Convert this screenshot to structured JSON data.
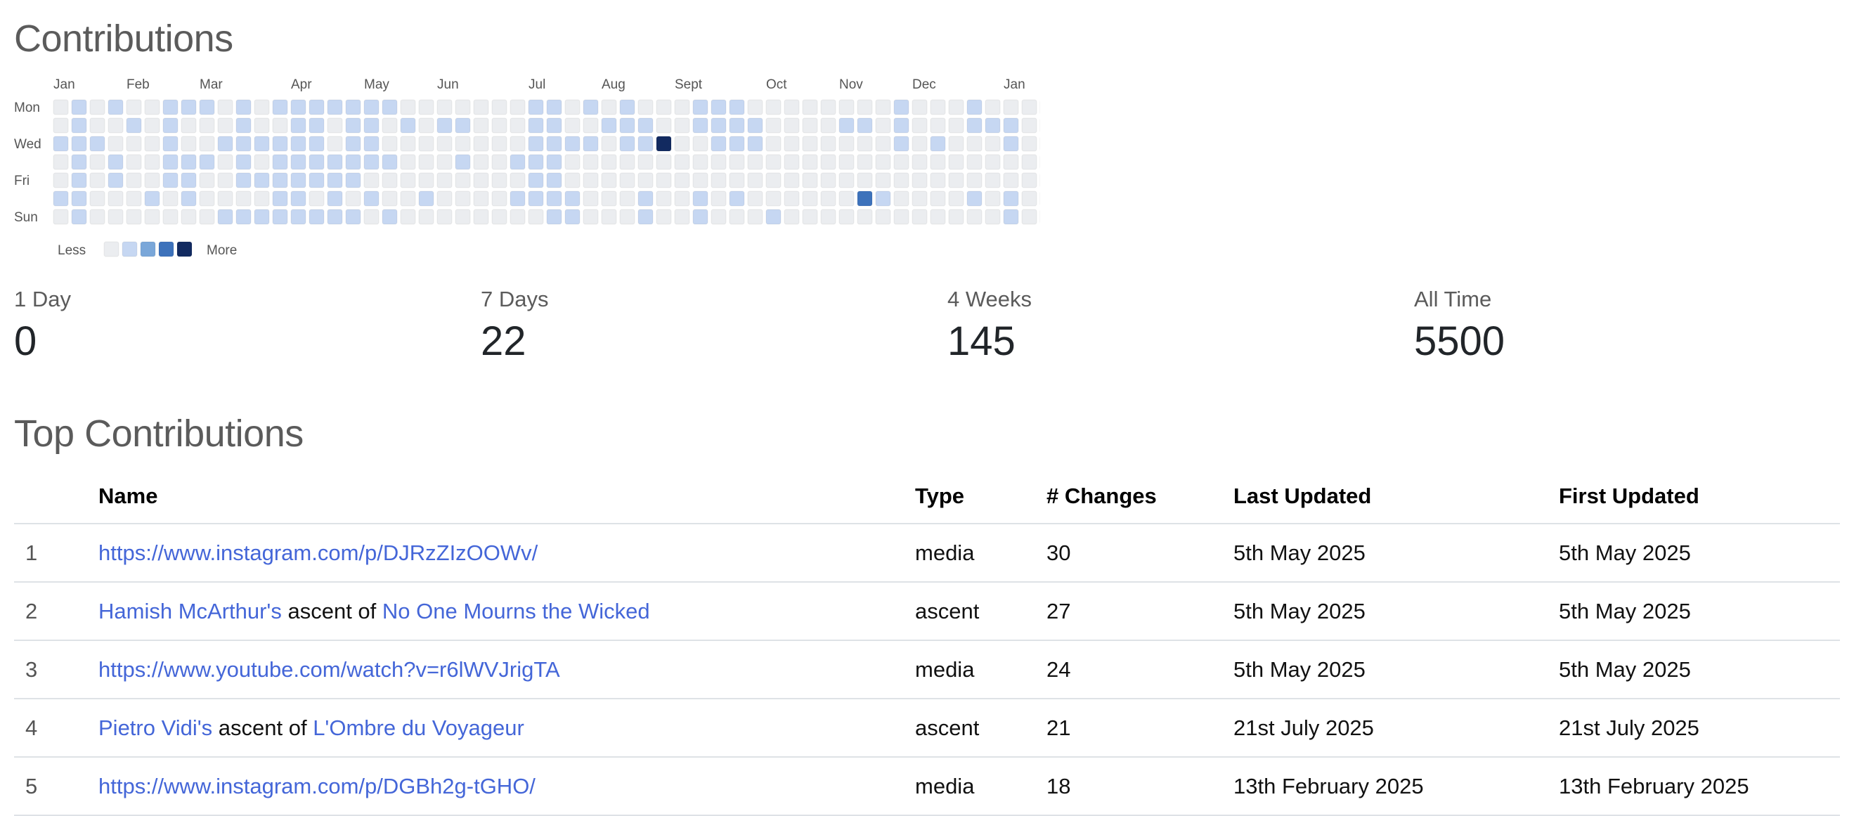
{
  "page": {
    "contributions_title": "Contributions",
    "top_contributions_title": "Top Contributions"
  },
  "heatmap": {
    "months": [
      "Jan",
      "Feb",
      "Mar",
      "Apr",
      "May",
      "Jun",
      "Jul",
      "Aug",
      "Sept",
      "Oct",
      "Nov",
      "Dec",
      "Jan"
    ],
    "day_labels": [
      "Mon",
      "Wed",
      "Fri",
      "Sun"
    ],
    "legend": {
      "less": "Less",
      "more": "More",
      "colors": [
        "#ebedf0",
        "#c6d7f2",
        "#7aa7d9",
        "#3d72bb",
        "#122a60"
      ]
    },
    "weeks": [
      [
        0,
        0,
        1,
        0,
        0,
        1,
        0
      ],
      [
        1,
        1,
        1,
        1,
        1,
        1,
        1
      ],
      [
        0,
        0,
        1,
        0,
        0,
        0,
        0
      ],
      [
        1,
        0,
        0,
        1,
        1,
        0,
        0
      ],
      [
        0,
        1,
        0,
        0,
        0,
        0,
        0
      ],
      [
        0,
        0,
        0,
        0,
        0,
        1,
        0
      ],
      [
        1,
        1,
        1,
        1,
        1,
        0,
        0
      ],
      [
        1,
        0,
        0,
        1,
        1,
        1,
        0
      ],
      [
        1,
        0,
        0,
        1,
        0,
        0,
        0
      ],
      [
        0,
        0,
        1,
        0,
        0,
        0,
        1
      ],
      [
        1,
        1,
        1,
        1,
        1,
        0,
        1
      ],
      [
        0,
        0,
        1,
        0,
        1,
        0,
        1
      ],
      [
        1,
        0,
        1,
        1,
        1,
        1,
        1
      ],
      [
        1,
        1,
        1,
        1,
        1,
        1,
        1
      ],
      [
        1,
        1,
        1,
        1,
        1,
        0,
        1
      ],
      [
        1,
        0,
        0,
        1,
        1,
        1,
        1
      ],
      [
        1,
        1,
        1,
        1,
        1,
        0,
        1
      ],
      [
        1,
        1,
        1,
        1,
        0,
        1,
        0
      ],
      [
        1,
        0,
        0,
        1,
        0,
        0,
        1
      ],
      [
        0,
        1,
        0,
        0,
        0,
        0,
        0
      ],
      [
        0,
        0,
        0,
        0,
        0,
        1,
        0
      ],
      [
        0,
        1,
        0,
        0,
        0,
        0,
        0
      ],
      [
        0,
        1,
        0,
        1,
        0,
        0,
        0
      ],
      [
        0,
        0,
        0,
        0,
        0,
        0,
        0
      ],
      [
        0,
        0,
        0,
        0,
        0,
        0,
        0
      ],
      [
        0,
        0,
        0,
        1,
        0,
        1,
        0
      ],
      [
        1,
        1,
        1,
        1,
        1,
        1,
        0
      ],
      [
        1,
        1,
        1,
        1,
        1,
        1,
        1
      ],
      [
        0,
        0,
        1,
        0,
        0,
        1,
        1
      ],
      [
        1,
        0,
        1,
        0,
        0,
        0,
        0
      ],
      [
        0,
        1,
        0,
        0,
        0,
        0,
        0
      ],
      [
        1,
        1,
        1,
        0,
        0,
        0,
        0
      ],
      [
        0,
        1,
        1,
        0,
        0,
        1,
        1
      ],
      [
        0,
        0,
        0,
        0,
        0,
        0,
        0
      ],
      [
        0,
        0,
        0,
        0,
        0,
        0,
        0
      ],
      [
        1,
        1,
        0,
        0,
        0,
        1,
        1
      ],
      [
        1,
        1,
        1,
        0,
        0,
        0,
        0
      ],
      [
        1,
        1,
        1,
        0,
        0,
        1,
        0
      ],
      [
        0,
        1,
        1,
        0,
        0,
        0,
        0
      ],
      [
        0,
        0,
        0,
        0,
        0,
        0,
        1
      ],
      [
        0,
        0,
        0,
        0,
        0,
        0,
        0
      ],
      [
        0,
        0,
        0,
        0,
        0,
        0,
        0
      ],
      [
        0,
        0,
        0,
        0,
        0,
        0,
        0
      ],
      [
        0,
        1,
        0,
        0,
        0,
        0,
        0
      ],
      [
        0,
        1,
        0,
        0,
        0,
        0,
        0
      ],
      [
        0,
        0,
        0,
        0,
        0,
        1,
        0
      ],
      [
        1,
        1,
        1,
        0,
        0,
        0,
        0
      ],
      [
        0,
        0,
        0,
        0,
        0,
        0,
        0
      ],
      [
        0,
        0,
        1,
        0,
        0,
        0,
        0
      ],
      [
        0,
        0,
        0,
        0,
        0,
        0,
        0
      ],
      [
        1,
        1,
        0,
        0,
        0,
        1,
        0
      ],
      [
        0,
        1,
        0,
        0,
        0,
        0,
        0
      ],
      [
        0,
        1,
        1,
        0,
        0,
        1,
        1
      ],
      [
        0,
        0,
        0,
        0,
        0,
        0,
        0
      ],
      [
        1,
        0,
        0,
        1,
        0,
        0,
        1
      ]
    ],
    "highlights": [
      {
        "week": 33,
        "day": 2,
        "level": 4
      },
      {
        "week": 44,
        "day": 5,
        "level": 3
      }
    ]
  },
  "stats": [
    {
      "label": "1 Day",
      "value": "0"
    },
    {
      "label": "7 Days",
      "value": "22"
    },
    {
      "label": "4 Weeks",
      "value": "145"
    },
    {
      "label": "All Time",
      "value": "5500"
    }
  ],
  "table": {
    "headers": {
      "rank": "",
      "name": "Name",
      "type": "Type",
      "changes": "# Changes",
      "last_updated": "Last Updated",
      "first_updated": "First Updated"
    },
    "rows": [
      {
        "rank": "1",
        "name_parts": [
          {
            "text": "https://www.instagram.com/p/DJRzZIzOOWv/",
            "link": true
          }
        ],
        "type": "media",
        "changes": "30",
        "last_updated": "5th May 2025",
        "first_updated": "5th May 2025"
      },
      {
        "rank": "2",
        "name_parts": [
          {
            "text": "Hamish McArthur's",
            "link": true
          },
          {
            "text": " ascent of ",
            "link": false
          },
          {
            "text": "No One Mourns the Wicked",
            "link": true
          }
        ],
        "type": "ascent",
        "changes": "27",
        "last_updated": "5th May 2025",
        "first_updated": "5th May 2025"
      },
      {
        "rank": "3",
        "name_parts": [
          {
            "text": "https://www.youtube.com/watch?v=r6lWVJrigTA",
            "link": true
          }
        ],
        "type": "media",
        "changes": "24",
        "last_updated": "5th May 2025",
        "first_updated": "5th May 2025"
      },
      {
        "rank": "4",
        "name_parts": [
          {
            "text": "Pietro Vidi's",
            "link": true
          },
          {
            "text": " ascent of ",
            "link": false
          },
          {
            "text": "L'Ombre du Voyageur",
            "link": true
          }
        ],
        "type": "ascent",
        "changes": "21",
        "last_updated": "21st July 2025",
        "first_updated": "21st July 2025"
      },
      {
        "rank": "5",
        "name_parts": [
          {
            "text": "https://www.instagram.com/p/DGBh2g-tGHO/",
            "link": true
          }
        ],
        "type": "media",
        "changes": "18",
        "last_updated": "13th February 2025",
        "first_updated": "13th February 2025"
      }
    ]
  }
}
